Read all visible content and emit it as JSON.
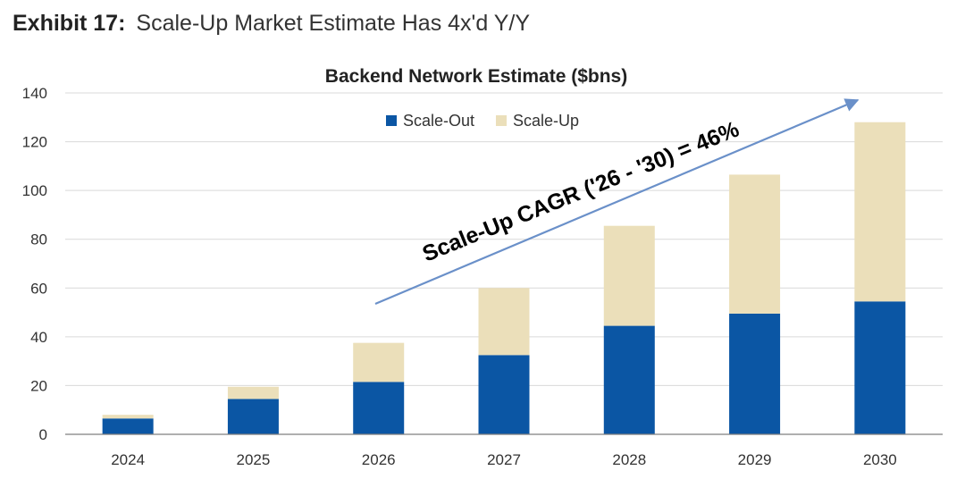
{
  "exhibit": {
    "label": "Exhibit 17:",
    "title": "Scale-Up Market Estimate Has 4x'd Y/Y"
  },
  "chart_data": {
    "type": "bar",
    "stacked": true,
    "title": "Backend Network Estimate ($bns)",
    "categories": [
      "2024",
      "2025",
      "2026",
      "2027",
      "2028",
      "2029",
      "2030"
    ],
    "series": [
      {
        "name": "Scale-Out",
        "color": "#0b56a4",
        "values": [
          6.5,
          14.5,
          21.5,
          32.5,
          44.5,
          49.5,
          54.5
        ]
      },
      {
        "name": "Scale-Up",
        "color": "#ebdfba",
        "values": [
          1.5,
          5,
          16,
          27.5,
          41,
          57,
          73.5
        ]
      }
    ],
    "ylim": [
      0,
      140
    ],
    "yticks": [
      0,
      20,
      40,
      60,
      80,
      100,
      120,
      140
    ],
    "grid": true,
    "legend": "top-center",
    "annotation": {
      "text": "Scale-Up CAGR ('26 - '30) = 46%",
      "arrow_color": "#6a90c9"
    }
  }
}
